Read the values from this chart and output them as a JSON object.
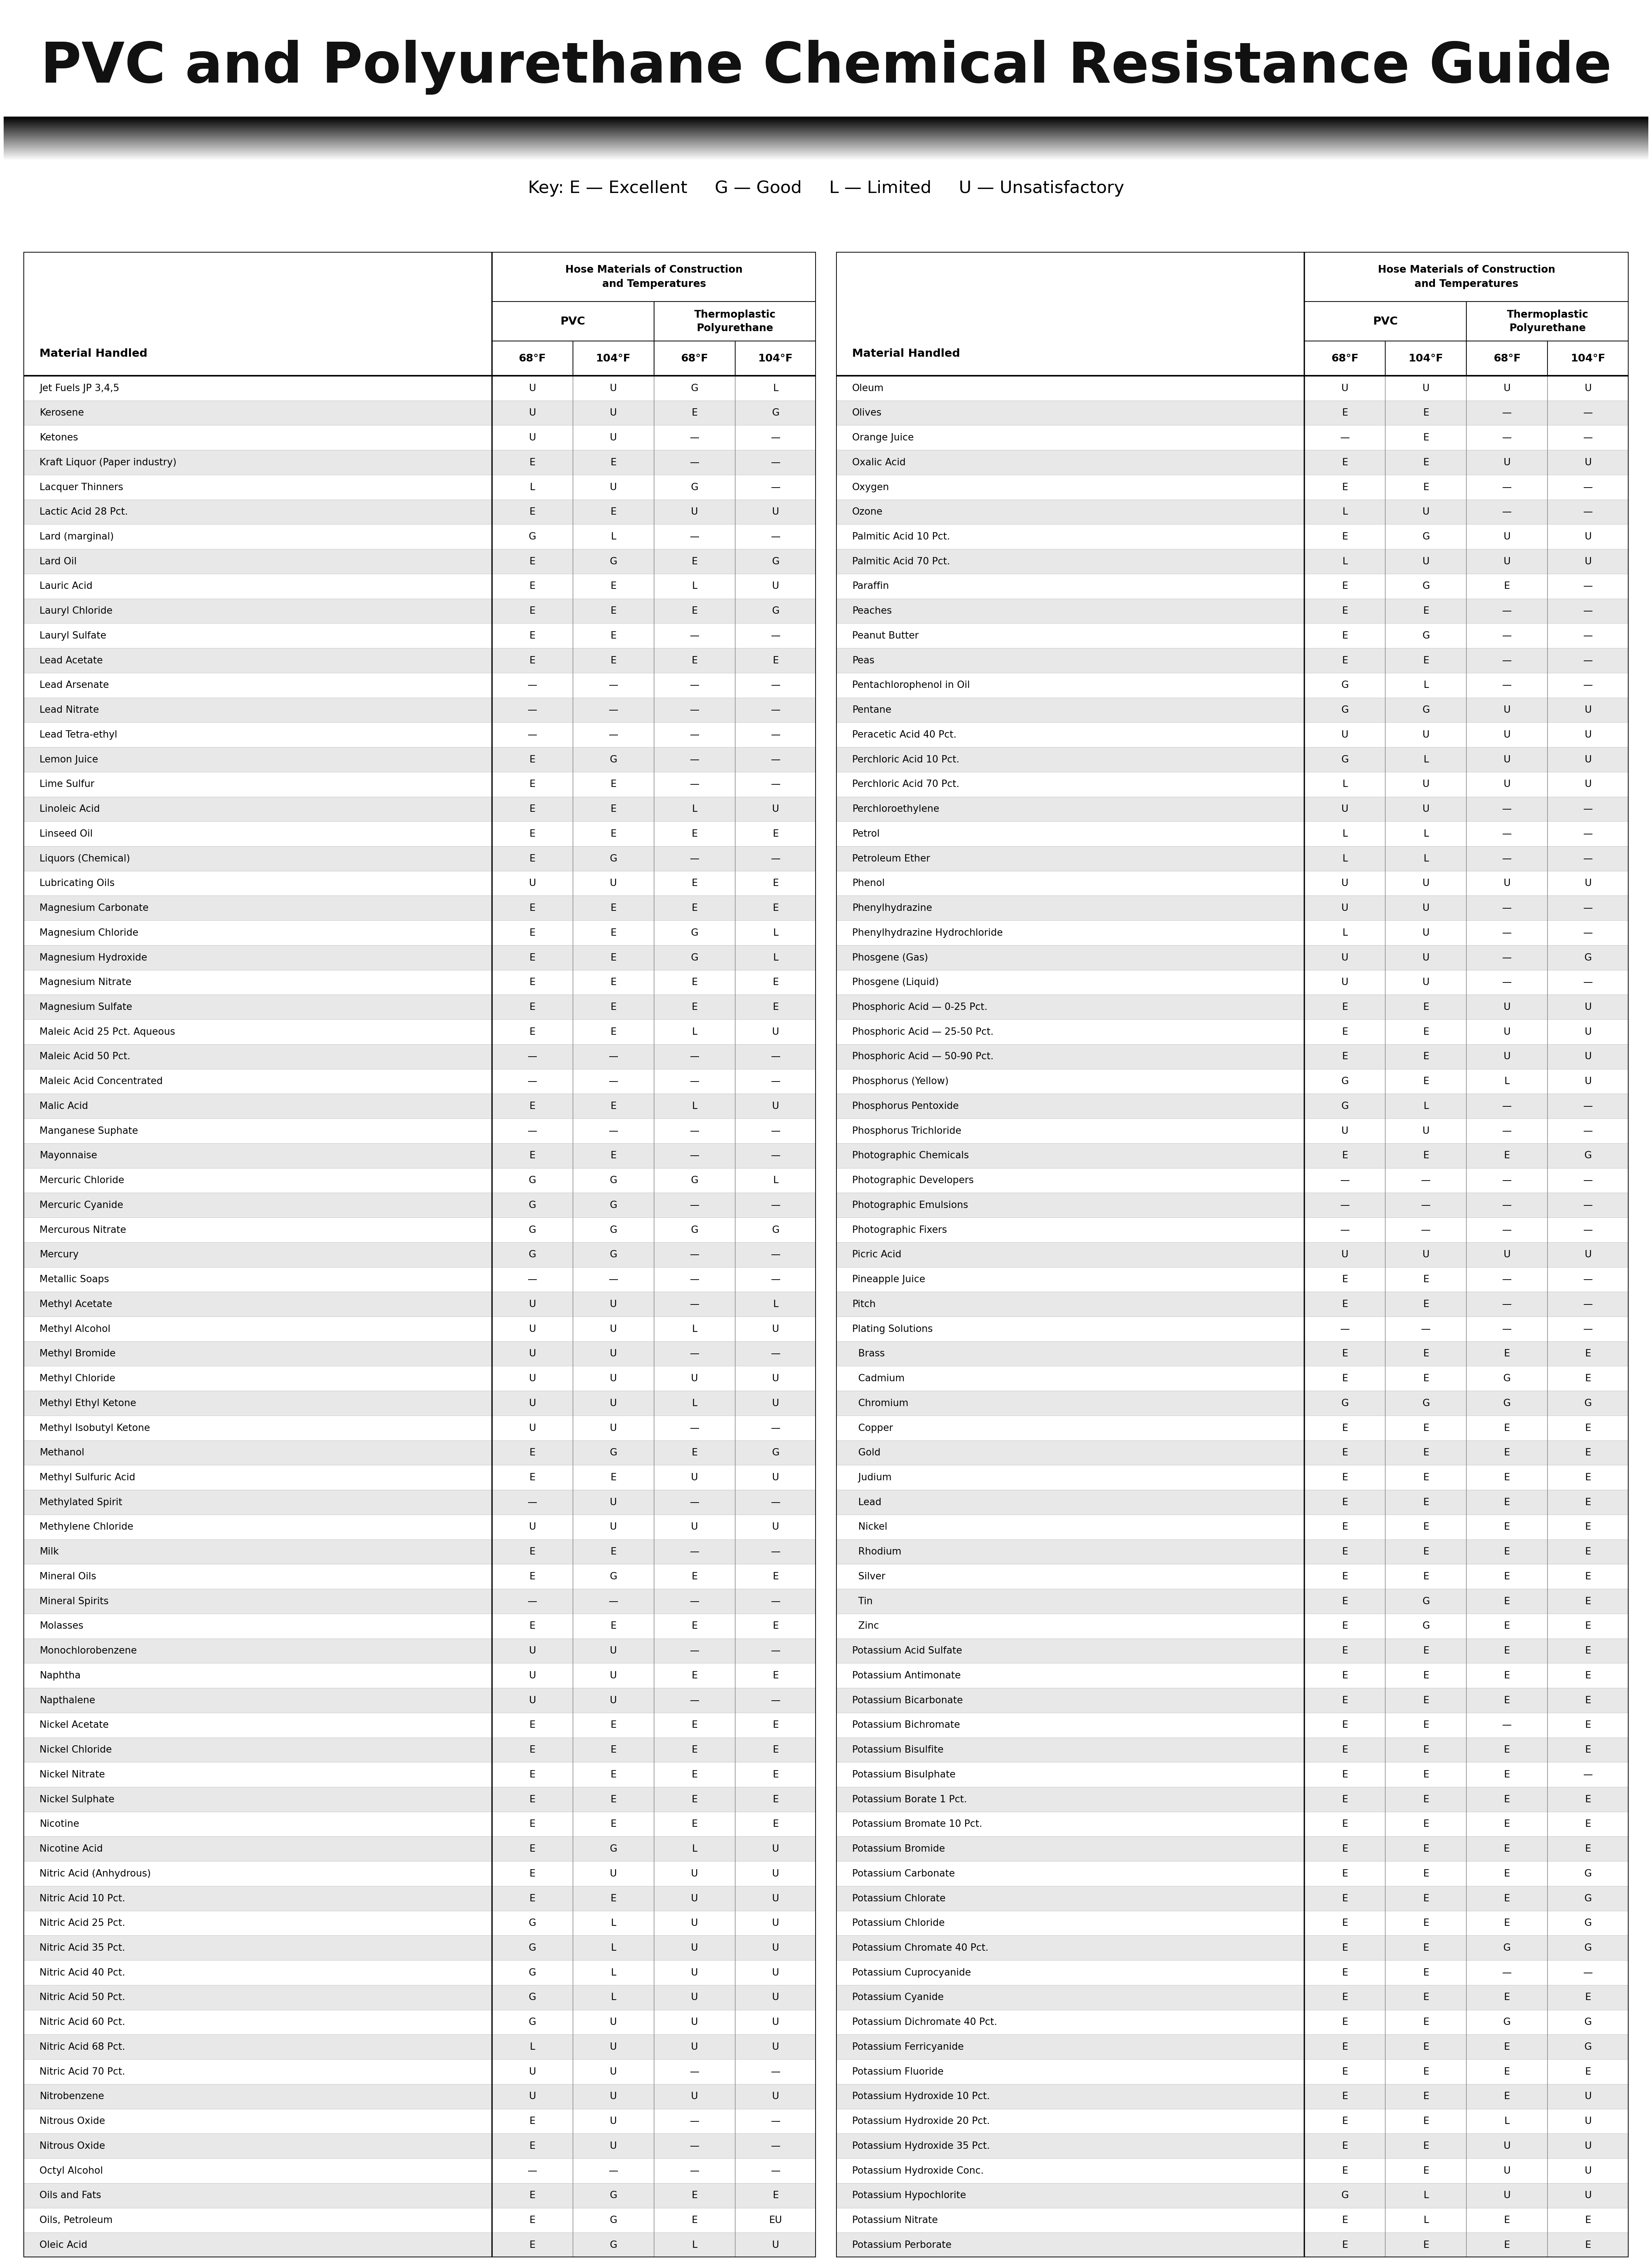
{
  "title": "PVC and Polyurethane Chemical Resistance Guide",
  "title_bg_color": "#FFD700",
  "title_text_color": "#111111",
  "key_text": "Key: E — Excellent     G — Good     L — Limited     U — Unsatisfactory",
  "temp_headers": [
    "68°F",
    "104°F",
    "68°F",
    "104°F"
  ],
  "left_table": [
    [
      "Jet Fuels JP 3,4,5",
      "U",
      "U",
      "G",
      "L"
    ],
    [
      "Kerosene",
      "U",
      "U",
      "E",
      "G"
    ],
    [
      "Ketones",
      "U",
      "U",
      "—",
      "—"
    ],
    [
      "Kraft Liquor (Paper industry)",
      "E",
      "E",
      "—",
      "—"
    ],
    [
      "Lacquer Thinners",
      "L",
      "U",
      "G",
      "—"
    ],
    [
      "Lactic Acid 28 Pct.",
      "E",
      "E",
      "U",
      "U"
    ],
    [
      "Lard (marginal)",
      "G",
      "L",
      "—",
      "—"
    ],
    [
      "Lard Oil",
      "E",
      "G",
      "E",
      "G"
    ],
    [
      "Lauric Acid",
      "E",
      "E",
      "L",
      "U"
    ],
    [
      "Lauryl Chloride",
      "E",
      "E",
      "E",
      "G"
    ],
    [
      "Lauryl Sulfate",
      "E",
      "E",
      "—",
      "—"
    ],
    [
      "Lead Acetate",
      "E",
      "E",
      "E",
      "E"
    ],
    [
      "Lead Arsenate",
      "—",
      "—",
      "—",
      "—"
    ],
    [
      "Lead Nitrate",
      "—",
      "—",
      "—",
      "—"
    ],
    [
      "Lead Tetra-ethyl",
      "—",
      "—",
      "—",
      "—"
    ],
    [
      "Lemon Juice",
      "E",
      "G",
      "—",
      "—"
    ],
    [
      "Lime Sulfur",
      "E",
      "E",
      "—",
      "—"
    ],
    [
      "Linoleic Acid",
      "E",
      "E",
      "L",
      "U"
    ],
    [
      "Linseed Oil",
      "E",
      "E",
      "E",
      "E"
    ],
    [
      "Liquors (Chemical)",
      "E",
      "G",
      "—",
      "—"
    ],
    [
      "Lubricating Oils",
      "U",
      "U",
      "E",
      "E"
    ],
    [
      "Magnesium Carbonate",
      "E",
      "E",
      "E",
      "E"
    ],
    [
      "Magnesium Chloride",
      "E",
      "E",
      "G",
      "L"
    ],
    [
      "Magnesium Hydroxide",
      "E",
      "E",
      "G",
      "L"
    ],
    [
      "Magnesium Nitrate",
      "E",
      "E",
      "E",
      "E"
    ],
    [
      "Magnesium Sulfate",
      "E",
      "E",
      "E",
      "E"
    ],
    [
      "Maleic Acid 25 Pct. Aqueous",
      "E",
      "E",
      "L",
      "U"
    ],
    [
      "Maleic Acid 50 Pct.",
      "—",
      "—",
      "—",
      "—"
    ],
    [
      "Maleic Acid Concentrated",
      "—",
      "—",
      "—",
      "—"
    ],
    [
      "Malic Acid",
      "E",
      "E",
      "L",
      "U"
    ],
    [
      "Manganese Suphate",
      "—",
      "—",
      "—",
      "—"
    ],
    [
      "Mayonnaise",
      "E",
      "E",
      "—",
      "—"
    ],
    [
      "Mercuric Chloride",
      "G",
      "G",
      "G",
      "L"
    ],
    [
      "Mercuric Cyanide",
      "G",
      "G",
      "—",
      "—"
    ],
    [
      "Mercurous Nitrate",
      "G",
      "G",
      "G",
      "G"
    ],
    [
      "Mercury",
      "G",
      "G",
      "—",
      "—"
    ],
    [
      "Metallic Soaps",
      "—",
      "—",
      "—",
      "—"
    ],
    [
      "Methyl Acetate",
      "U",
      "U",
      "—",
      "L"
    ],
    [
      "Methyl Alcohol",
      "U",
      "U",
      "L",
      "U"
    ],
    [
      "Methyl Bromide",
      "U",
      "U",
      "—",
      "—"
    ],
    [
      "Methyl Chloride",
      "U",
      "U",
      "U",
      "U"
    ],
    [
      "Methyl Ethyl Ketone",
      "U",
      "U",
      "L",
      "U"
    ],
    [
      "Methyl Isobutyl Ketone",
      "U",
      "U",
      "—",
      "—"
    ],
    [
      "Methanol",
      "E",
      "G",
      "E",
      "G"
    ],
    [
      "Methyl Sulfuric Acid",
      "E",
      "E",
      "U",
      "U"
    ],
    [
      "Methylated Spirit",
      "—",
      "U",
      "—",
      "—"
    ],
    [
      "Methylene Chloride",
      "U",
      "U",
      "U",
      "U"
    ],
    [
      "Milk",
      "E",
      "E",
      "—",
      "—"
    ],
    [
      "Mineral Oils",
      "E",
      "G",
      "E",
      "E"
    ],
    [
      "Mineral Spirits",
      "—",
      "—",
      "—",
      "—"
    ],
    [
      "Molasses",
      "E",
      "E",
      "E",
      "E"
    ],
    [
      "Monochlorobenzene",
      "U",
      "U",
      "—",
      "—"
    ],
    [
      "Naphtha",
      "U",
      "U",
      "E",
      "E"
    ],
    [
      "Napthalene",
      "U",
      "U",
      "—",
      "—"
    ],
    [
      "Nickel Acetate",
      "E",
      "E",
      "E",
      "E"
    ],
    [
      "Nickel Chloride",
      "E",
      "E",
      "E",
      "E"
    ],
    [
      "Nickel Nitrate",
      "E",
      "E",
      "E",
      "E"
    ],
    [
      "Nickel Sulphate",
      "E",
      "E",
      "E",
      "E"
    ],
    [
      "Nicotine",
      "E",
      "E",
      "E",
      "E"
    ],
    [
      "Nicotine Acid",
      "E",
      "G",
      "L",
      "U"
    ],
    [
      "Nitric Acid (Anhydrous)",
      "E",
      "U",
      "U",
      "U"
    ],
    [
      "Nitric Acid 10 Pct.",
      "E",
      "E",
      "U",
      "U"
    ],
    [
      "Nitric Acid 25 Pct.",
      "G",
      "L",
      "U",
      "U"
    ],
    [
      "Nitric Acid 35 Pct.",
      "G",
      "L",
      "U",
      "U"
    ],
    [
      "Nitric Acid 40 Pct.",
      "G",
      "L",
      "U",
      "U"
    ],
    [
      "Nitric Acid 50 Pct.",
      "G",
      "L",
      "U",
      "U"
    ],
    [
      "Nitric Acid 60 Pct.",
      "G",
      "U",
      "U",
      "U"
    ],
    [
      "Nitric Acid 68 Pct.",
      "L",
      "U",
      "U",
      "U"
    ],
    [
      "Nitric Acid 70 Pct.",
      "U",
      "U",
      "—",
      "—"
    ],
    [
      "Nitrobenzene",
      "U",
      "U",
      "U",
      "U"
    ],
    [
      "Nitrous Oxide",
      "E",
      "U",
      "—",
      "—"
    ],
    [
      "Nitrous Oxide",
      "E",
      "U",
      "—",
      "—"
    ],
    [
      "Octyl Alcohol",
      "—",
      "—",
      "—",
      "—"
    ],
    [
      "Oils and Fats",
      "E",
      "G",
      "E",
      "E"
    ],
    [
      "Oils, Petroleum",
      "E",
      "G",
      "E",
      "EU"
    ],
    [
      "Oleic Acid",
      "E",
      "G",
      "L",
      "U"
    ]
  ],
  "right_table": [
    [
      "Oleum",
      "U",
      "U",
      "U",
      "U"
    ],
    [
      "Olives",
      "E",
      "E",
      "—",
      "—"
    ],
    [
      "Orange Juice",
      "—",
      "E",
      "—",
      "—"
    ],
    [
      "Oxalic Acid",
      "E",
      "E",
      "U",
      "U"
    ],
    [
      "Oxygen",
      "E",
      "E",
      "—",
      "—"
    ],
    [
      "Ozone",
      "L",
      "U",
      "—",
      "—"
    ],
    [
      "Palmitic Acid 10 Pct.",
      "E",
      "G",
      "U",
      "U"
    ],
    [
      "Palmitic Acid 70 Pct.",
      "L",
      "U",
      "U",
      "U"
    ],
    [
      "Paraffin",
      "E",
      "G",
      "E",
      "—"
    ],
    [
      "Peaches",
      "E",
      "E",
      "—",
      "—"
    ],
    [
      "Peanut Butter",
      "E",
      "G",
      "—",
      "—"
    ],
    [
      "Peas",
      "E",
      "E",
      "—",
      "—"
    ],
    [
      "Pentachlorophenol in Oil",
      "G",
      "L",
      "—",
      "—"
    ],
    [
      "Pentane",
      "G",
      "G",
      "U",
      "U"
    ],
    [
      "Peracetic Acid 40 Pct.",
      "U",
      "U",
      "U",
      "U"
    ],
    [
      "Perchloric Acid 10 Pct.",
      "G",
      "L",
      "U",
      "U"
    ],
    [
      "Perchloric Acid 70 Pct.",
      "L",
      "U",
      "U",
      "U"
    ],
    [
      "Perchloroethylene",
      "U",
      "U",
      "—",
      "—"
    ],
    [
      "Petrol",
      "L",
      "L",
      "—",
      "—"
    ],
    [
      "Petroleum Ether",
      "L",
      "L",
      "—",
      "—"
    ],
    [
      "Phenol",
      "U",
      "U",
      "U",
      "U"
    ],
    [
      "Phenylhydrazine",
      "U",
      "U",
      "—",
      "—"
    ],
    [
      "Phenylhydrazine Hydrochloride",
      "L",
      "U",
      "—",
      "—"
    ],
    [
      "Phosgene (Gas)",
      "U",
      "U",
      "—",
      "G"
    ],
    [
      "Phosgene (Liquid)",
      "U",
      "U",
      "—",
      "—"
    ],
    [
      "Phosphoric Acid — 0-25 Pct.",
      "E",
      "E",
      "U",
      "U"
    ],
    [
      "Phosphoric Acid — 25-50 Pct.",
      "E",
      "E",
      "U",
      "U"
    ],
    [
      "Phosphoric Acid — 50-90 Pct.",
      "E",
      "E",
      "U",
      "U"
    ],
    [
      "Phosphorus (Yellow)",
      "G",
      "E",
      "L",
      "U"
    ],
    [
      "Phosphorus Pentoxide",
      "G",
      "L",
      "—",
      "—"
    ],
    [
      "Phosphorus Trichloride",
      "U",
      "U",
      "—",
      "—"
    ],
    [
      "Photographic Chemicals",
      "E",
      "E",
      "E",
      "G"
    ],
    [
      "Photographic Developers",
      "—",
      "—",
      "—",
      "—"
    ],
    [
      "Photographic Emulsions",
      "—",
      "—",
      "—",
      "—"
    ],
    [
      "Photographic Fixers",
      "—",
      "—",
      "—",
      "—"
    ],
    [
      "Picric Acid",
      "U",
      "U",
      "U",
      "U"
    ],
    [
      "Pineapple Juice",
      "E",
      "E",
      "—",
      "—"
    ],
    [
      "Pitch",
      "E",
      "E",
      "—",
      "—"
    ],
    [
      "Plating Solutions",
      "—",
      "—",
      "—",
      "—"
    ],
    [
      "  Brass",
      "E",
      "E",
      "E",
      "E"
    ],
    [
      "  Cadmium",
      "E",
      "E",
      "G",
      "E"
    ],
    [
      "  Chromium",
      "G",
      "G",
      "G",
      "G"
    ],
    [
      "  Copper",
      "E",
      "E",
      "E",
      "E"
    ],
    [
      "  Gold",
      "E",
      "E",
      "E",
      "E"
    ],
    [
      "  Judium",
      "E",
      "E",
      "E",
      "E"
    ],
    [
      "  Lead",
      "E",
      "E",
      "E",
      "E"
    ],
    [
      "  Nickel",
      "E",
      "E",
      "E",
      "E"
    ],
    [
      "  Rhodium",
      "E",
      "E",
      "E",
      "E"
    ],
    [
      "  Silver",
      "E",
      "E",
      "E",
      "E"
    ],
    [
      "  Tin",
      "E",
      "G",
      "E",
      "E"
    ],
    [
      "  Zinc",
      "E",
      "G",
      "E",
      "E"
    ],
    [
      "Potassium Acid Sulfate",
      "E",
      "E",
      "E",
      "E"
    ],
    [
      "Potassium Antimonate",
      "E",
      "E",
      "E",
      "E"
    ],
    [
      "Potassium Bicarbonate",
      "E",
      "E",
      "E",
      "E"
    ],
    [
      "Potassium Bichromate",
      "E",
      "E",
      "—",
      "E"
    ],
    [
      "Potassium Bisulfite",
      "E",
      "E",
      "E",
      "E"
    ],
    [
      "Potassium Bisulphate",
      "E",
      "E",
      "E",
      "—"
    ],
    [
      "Potassium Borate 1 Pct.",
      "E",
      "E",
      "E",
      "E"
    ],
    [
      "Potassium Bromate 10 Pct.",
      "E",
      "E",
      "E",
      "E"
    ],
    [
      "Potassium Bromide",
      "E",
      "E",
      "E",
      "E"
    ],
    [
      "Potassium Carbonate",
      "E",
      "E",
      "E",
      "G"
    ],
    [
      "Potassium Chlorate",
      "E",
      "E",
      "E",
      "G"
    ],
    [
      "Potassium Chloride",
      "E",
      "E",
      "E",
      "G"
    ],
    [
      "Potassium Chromate 40 Pct.",
      "E",
      "E",
      "G",
      "G"
    ],
    [
      "Potassium Cuprocyanide",
      "E",
      "E",
      "—",
      "—"
    ],
    [
      "Potassium Cyanide",
      "E",
      "E",
      "E",
      "E"
    ],
    [
      "Potassium Dichromate 40 Pct.",
      "E",
      "E",
      "G",
      "G"
    ],
    [
      "Potassium Ferricyanide",
      "E",
      "E",
      "E",
      "G"
    ],
    [
      "Potassium Fluoride",
      "E",
      "E",
      "E",
      "E"
    ],
    [
      "Potassium Hydroxide 10 Pct.",
      "E",
      "E",
      "E",
      "U"
    ],
    [
      "Potassium Hydroxide 20 Pct.",
      "E",
      "E",
      "L",
      "U"
    ],
    [
      "Potassium Hydroxide 35 Pct.",
      "E",
      "E",
      "U",
      "U"
    ],
    [
      "Potassium Hydroxide Conc.",
      "E",
      "E",
      "U",
      "U"
    ],
    [
      "Potassium Hypochlorite",
      "G",
      "L",
      "U",
      "U"
    ],
    [
      "Potassium Nitrate",
      "E",
      "L",
      "E",
      "E"
    ],
    [
      "Potassium Perborate",
      "E",
      "E",
      "E",
      "E"
    ]
  ]
}
